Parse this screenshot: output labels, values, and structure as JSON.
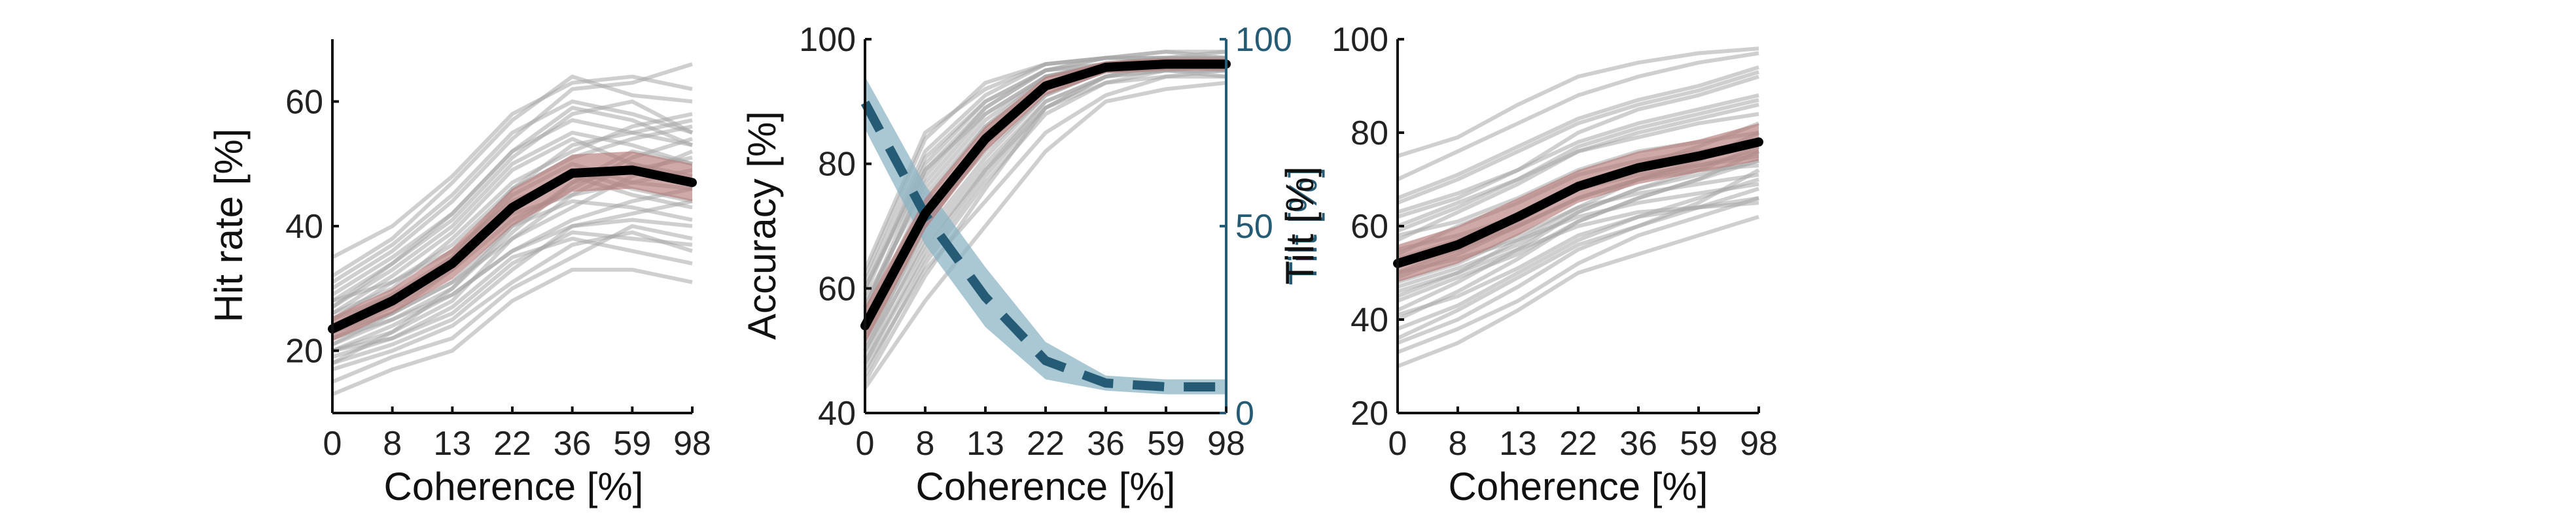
{
  "chart_data": [
    {
      "type": "line",
      "xlabel": "Coherence [%]",
      "ylabel": "Hit rate [%]",
      "categories": [
        "0",
        "8",
        "13",
        "22",
        "36",
        "59",
        "98"
      ],
      "ylim": [
        10,
        70
      ],
      "yticks": [
        20,
        40,
        60
      ],
      "mean": [
        23.5,
        28,
        34,
        43,
        48.5,
        49,
        47
      ],
      "ci_halfwidth": [
        2,
        2,
        2.5,
        3,
        3,
        3,
        3
      ],
      "subjects": [
        [
          24,
          29,
          35,
          45,
          50,
          47,
          46
        ],
        [
          20,
          23,
          28,
          38,
          45,
          50,
          48
        ],
        [
          28,
          34,
          41,
          51,
          58,
          60,
          55
        ],
        [
          18,
          21,
          25,
          33,
          40,
          42,
          44
        ],
        [
          30,
          36,
          44,
          54,
          62,
          63,
          66
        ],
        [
          22,
          26,
          31,
          40,
          44,
          43,
          41
        ],
        [
          26,
          30,
          38,
          47,
          52,
          56,
          58
        ],
        [
          15,
          19,
          22,
          30,
          35,
          40,
          38
        ],
        [
          32,
          38,
          47,
          57,
          64,
          61,
          60
        ],
        [
          21,
          25,
          30,
          39,
          47,
          49,
          51
        ],
        [
          25,
          31,
          36,
          44,
          48,
          45,
          43
        ],
        [
          19,
          22,
          27,
          35,
          38,
          36,
          34
        ],
        [
          27,
          33,
          40,
          50,
          55,
          53,
          50
        ],
        [
          23,
          27,
          33,
          41,
          46,
          51,
          54
        ],
        [
          17,
          20,
          24,
          31,
          37,
          39,
          36
        ],
        [
          29,
          35,
          42,
          52,
          59,
          57,
          53
        ],
        [
          24,
          28,
          35,
          46,
          53,
          55,
          57
        ],
        [
          20,
          24,
          29,
          36,
          41,
          44,
          46
        ],
        [
          35,
          40,
          48,
          58,
          63,
          64,
          62
        ],
        [
          22,
          25,
          29,
          36,
          40,
          41,
          40
        ],
        [
          26,
          32,
          39,
          49,
          54,
          50,
          47
        ],
        [
          13,
          17,
          20,
          28,
          33,
          33,
          31
        ],
        [
          28,
          31,
          37,
          46,
          51,
          54,
          56
        ],
        [
          21,
          26,
          33,
          43,
          49,
          46,
          44
        ],
        [
          25,
          29,
          34,
          42,
          45,
          47,
          49
        ],
        [
          18,
          23,
          30,
          40,
          47,
          52,
          50
        ],
        [
          31,
          37,
          45,
          55,
          60,
          58,
          55
        ],
        [
          23,
          26,
          31,
          38,
          43,
          48,
          52
        ],
        [
          20,
          22,
          26,
          34,
          39,
          38,
          37
        ],
        [
          27,
          34,
          42,
          52,
          57,
          55,
          53
        ]
      ],
      "colors": {
        "mean": "#000000",
        "band": "#b57a7a",
        "subjects": "#a8a8a8"
      }
    },
    {
      "type": "line",
      "xlabel": "Coherence [%]",
      "ylabel": "Accuracy [%]",
      "ylabel_right": "Tilt [%]",
      "categories": [
        "0",
        "8",
        "13",
        "22",
        "36",
        "59",
        "98"
      ],
      "ylim": [
        40,
        100
      ],
      "yticks": [
        40,
        60,
        80,
        100
      ],
      "ylim_right": [
        0,
        100
      ],
      "yticks_right": [
        0,
        50,
        100
      ],
      "mean": [
        54,
        72,
        84,
        92.5,
        95.5,
        96,
        96
      ],
      "ci_halfwidth": [
        3,
        2.5,
        2,
        1.5,
        1,
        1,
        1
      ],
      "right_mean": [
        83,
        53,
        31,
        14,
        8,
        7,
        7
      ],
      "right_ci_halfwidth": [
        7,
        8,
        8,
        5,
        2,
        2,
        2
      ],
      "subjects": [
        [
          50,
          70,
          83,
          93,
          96,
          97,
          97
        ],
        [
          45,
          62,
          76,
          89,
          94,
          95,
          96
        ],
        [
          60,
          80,
          90,
          95,
          97,
          97,
          98
        ],
        [
          55,
          75,
          86,
          93,
          96,
          96,
          95
        ],
        [
          48,
          66,
          79,
          90,
          94,
          95,
          95
        ],
        [
          62,
          84,
          93,
          96,
          97,
          98,
          98
        ],
        [
          52,
          72,
          85,
          93,
          95,
          96,
          96
        ],
        [
          58,
          76,
          87,
          94,
          96,
          97,
          96
        ],
        [
          47,
          63,
          74,
          85,
          91,
          94,
          94
        ],
        [
          56,
          78,
          89,
          95,
          97,
          97,
          97
        ],
        [
          44,
          58,
          70,
          82,
          90,
          92,
          93
        ],
        [
          53,
          73,
          84,
          92,
          95,
          95,
          94
        ],
        [
          61,
          82,
          91,
          96,
          97,
          97,
          97
        ],
        [
          49,
          68,
          80,
          90,
          94,
          96,
          96
        ],
        [
          57,
          79,
          88,
          94,
          96,
          97,
          97
        ],
        [
          46,
          64,
          77,
          88,
          93,
          94,
          95
        ],
        [
          54,
          71,
          82,
          91,
          95,
          96,
          96
        ],
        [
          59,
          81,
          90,
          95,
          96,
          96,
          97
        ],
        [
          51,
          69,
          81,
          91,
          95,
          95,
          95
        ],
        [
          63,
          85,
          92,
          96,
          97,
          98,
          97
        ],
        [
          50,
          67,
          79,
          89,
          93,
          95,
          96
        ],
        [
          55,
          74,
          86,
          94,
          96,
          97,
          96
        ],
        [
          48,
          65,
          78,
          89,
          94,
          96,
          95
        ],
        [
          57,
          77,
          88,
          94,
          96,
          96,
          97
        ],
        [
          52,
          70,
          83,
          92,
          95,
          96,
          96
        ],
        [
          60,
          79,
          89,
          95,
          96,
          97,
          97
        ]
      ],
      "colors": {
        "mean": "#000000",
        "band": "#b57a7a",
        "subjects": "#a8a8a8",
        "right": "#255b74",
        "right_band": "#8db4c6"
      }
    },
    {
      "type": "line",
      "xlabel": "Coherence [%]",
      "ylabel": "Tilt [%]",
      "categories": [
        "0",
        "8",
        "13",
        "22",
        "36",
        "59",
        "98"
      ],
      "ylim": [
        20,
        100
      ],
      "yticks": [
        20,
        40,
        60,
        80,
        100
      ],
      "mean": [
        52,
        56,
        62,
        68.5,
        72.5,
        75,
        78
      ],
      "ci_halfwidth": [
        4,
        4,
        4,
        3.5,
        3.5,
        3.5,
        4
      ],
      "subjects": [
        [
          50,
          55,
          61,
          68,
          72,
          75,
          78
        ],
        [
          42,
          48,
          55,
          63,
          68,
          71,
          74
        ],
        [
          60,
          65,
          70,
          76,
          80,
          83,
          86
        ],
        [
          35,
          40,
          47,
          55,
          60,
          64,
          68
        ],
        [
          70,
          76,
          82,
          88,
          92,
          95,
          97
        ],
        [
          55,
          58,
          62,
          68,
          71,
          73,
          76
        ],
        [
          45,
          50,
          57,
          64,
          70,
          74,
          80
        ],
        [
          30,
          35,
          42,
          50,
          54,
          58,
          62
        ],
        [
          62,
          66,
          72,
          80,
          85,
          88,
          92
        ],
        [
          48,
          52,
          58,
          64,
          67,
          69,
          71
        ],
        [
          57,
          63,
          69,
          76,
          79,
          82,
          84
        ],
        [
          38,
          43,
          50,
          57,
          62,
          66,
          70
        ],
        [
          65,
          70,
          76,
          82,
          86,
          89,
          93
        ],
        [
          52,
          55,
          60,
          66,
          70,
          73,
          75
        ],
        [
          44,
          49,
          54,
          61,
          66,
          70,
          76
        ],
        [
          58,
          61,
          66,
          72,
          76,
          78,
          80
        ],
        [
          33,
          38,
          44,
          52,
          58,
          62,
          66
        ],
        [
          75,
          79,
          86,
          92,
          95,
          97,
          98
        ],
        [
          50,
          53,
          57,
          62,
          65,
          67,
          69
        ],
        [
          40,
          46,
          53,
          61,
          66,
          70,
          74
        ],
        [
          63,
          67,
          72,
          78,
          82,
          85,
          88
        ],
        [
          47,
          51,
          56,
          63,
          68,
          72,
          77
        ],
        [
          54,
          60,
          65,
          71,
          74,
          76,
          78
        ],
        [
          36,
          42,
          49,
          56,
          60,
          65,
          72
        ],
        [
          59,
          64,
          70,
          77,
          81,
          84,
          87
        ],
        [
          46,
          50,
          55,
          60,
          63,
          64,
          65
        ],
        [
          53,
          57,
          62,
          69,
          73,
          77,
          82
        ],
        [
          41,
          45,
          51,
          58,
          62,
          64,
          66
        ],
        [
          66,
          71,
          77,
          83,
          87,
          90,
          94
        ],
        [
          49,
          54,
          60,
          66,
          70,
          72,
          73
        ]
      ],
      "colors": {
        "mean": "#000000",
        "band": "#b57a7a",
        "subjects": "#a8a8a8"
      }
    }
  ]
}
